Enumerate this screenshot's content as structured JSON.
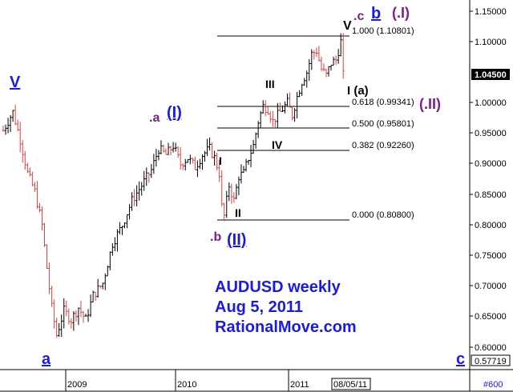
{
  "chart_data": {
    "type": "ohlc",
    "symbol": "AUDUSD",
    "annotation_lines": [
      "AUDUSD weekly",
      "Aug 5, 2011",
      "RationalMove.com"
    ],
    "y_ticks": [
      "1.15000",
      "1.10000",
      "1.04500",
      "1.00000",
      "0.95000",
      "0.90000",
      "0.85000",
      "0.80000",
      "0.75000",
      "0.70000",
      "0.65000",
      "0.60000",
      "0.57719"
    ],
    "last_price": "1.04500",
    "low_marker": "0.57719",
    "x_labels": [
      "2009",
      "2010",
      "2011",
      "08/05/11"
    ],
    "corner_label": "#600",
    "ylim": [
      0.57,
      1.165
    ],
    "fib_levels": [
      {
        "ratio": "1.000",
        "price": 1.10801,
        "label": "1.000 (1.10801)"
      },
      {
        "ratio": "0.618",
        "price": 0.99341,
        "label": "0.618 (0.99341)"
      },
      {
        "ratio": "0.500",
        "price": 0.95801,
        "label": "0.500 (0.95801)"
      },
      {
        "ratio": "0.382",
        "price": 0.9226,
        "label": "0.382 (0.92260)"
      },
      {
        "ratio": "0.000",
        "price": 0.808,
        "label": "0.000 (0.80800)"
      }
    ],
    "wave_labels": [
      {
        "text": "V",
        "color": "blue",
        "underline": true
      },
      {
        "text": ".a",
        "color": "purple"
      },
      {
        "text": "(I)",
        "color": "blue",
        "underline": true
      },
      {
        "text": "a",
        "color": "blue",
        "underline": true
      },
      {
        "text": "I",
        "color": "black"
      },
      {
        "text": "II",
        "color": "black"
      },
      {
        "text": "III",
        "color": "black"
      },
      {
        "text": "IV",
        "color": "black"
      },
      {
        "text": ".b",
        "color": "purple"
      },
      {
        "text": "(II)",
        "color": "blue",
        "underline": true
      },
      {
        "text": "V",
        "color": "black"
      },
      {
        "text": ".c",
        "color": "purple"
      },
      {
        "text": "b",
        "color": "blue",
        "underline": true
      },
      {
        "text": "(.I)",
        "color": "purple"
      },
      {
        "text": "I (a)",
        "color": "black"
      },
      {
        "text": "(.II)",
        "color": "purple"
      },
      {
        "text": "c",
        "color": "blue",
        "underline": true
      }
    ],
    "anchors": [
      {
        "w": 0,
        "p": 0.955
      },
      {
        "w": 4,
        "p": 0.985
      },
      {
        "w": 7,
        "p": 0.94
      },
      {
        "w": 10,
        "p": 0.885
      },
      {
        "w": 13,
        "p": 0.855
      },
      {
        "w": 16,
        "p": 0.8
      },
      {
        "w": 18,
        "p": 0.73
      },
      {
        "w": 20,
        "p": 0.665
      },
      {
        "w": 22,
        "p": 0.62
      },
      {
        "w": 25,
        "p": 0.66
      },
      {
        "w": 28,
        "p": 0.645
      },
      {
        "w": 31,
        "p": 0.665
      },
      {
        "w": 34,
        "p": 0.645
      },
      {
        "w": 37,
        "p": 0.685
      },
      {
        "w": 41,
        "p": 0.705
      },
      {
        "w": 45,
        "p": 0.77
      },
      {
        "w": 49,
        "p": 0.8
      },
      {
        "w": 53,
        "p": 0.84
      },
      {
        "w": 57,
        "p": 0.865
      },
      {
        "w": 61,
        "p": 0.89
      },
      {
        "w": 64,
        "p": 0.925
      },
      {
        "w": 67,
        "p": 0.915
      },
      {
        "w": 70,
        "p": 0.93
      },
      {
        "w": 73,
        "p": 0.9
      },
      {
        "w": 76,
        "p": 0.91
      },
      {
        "w": 79,
        "p": 0.895
      },
      {
        "w": 82,
        "p": 0.915
      },
      {
        "w": 85,
        "p": 0.925
      },
      {
        "w": 87,
        "p": 0.91
      },
      {
        "w": 89,
        "p": 0.885
      },
      {
        "w": 90,
        "p": 0.83
      },
      {
        "w": 91,
        "p": 0.815
      },
      {
        "w": 93,
        "p": 0.865
      },
      {
        "w": 95,
        "p": 0.84
      },
      {
        "w": 97,
        "p": 0.88
      },
      {
        "w": 99,
        "p": 0.885
      },
      {
        "w": 101,
        "p": 0.91
      },
      {
        "w": 103,
        "p": 0.93
      },
      {
        "w": 105,
        "p": 0.97
      },
      {
        "w": 107,
        "p": 0.995
      },
      {
        "w": 109,
        "p": 0.99
      },
      {
        "w": 111,
        "p": 0.97
      },
      {
        "w": 113,
        "p": 0.98
      },
      {
        "w": 115,
        "p": 0.99
      },
      {
        "w": 117,
        "p": 1.0
      },
      {
        "w": 119,
        "p": 0.98
      },
      {
        "w": 121,
        "p": 1.01
      },
      {
        "w": 123,
        "p": 1.035
      },
      {
        "w": 125,
        "p": 1.05
      },
      {
        "w": 127,
        "p": 1.08
      },
      {
        "w": 129,
        "p": 1.085
      },
      {
        "w": 131,
        "p": 1.055
      },
      {
        "w": 133,
        "p": 1.045
      },
      {
        "w": 135,
        "p": 1.065
      },
      {
        "w": 137,
        "p": 1.07
      },
      {
        "w": 139,
        "p": 1.1
      },
      {
        "w": 140,
        "p": 1.045
      }
    ]
  }
}
